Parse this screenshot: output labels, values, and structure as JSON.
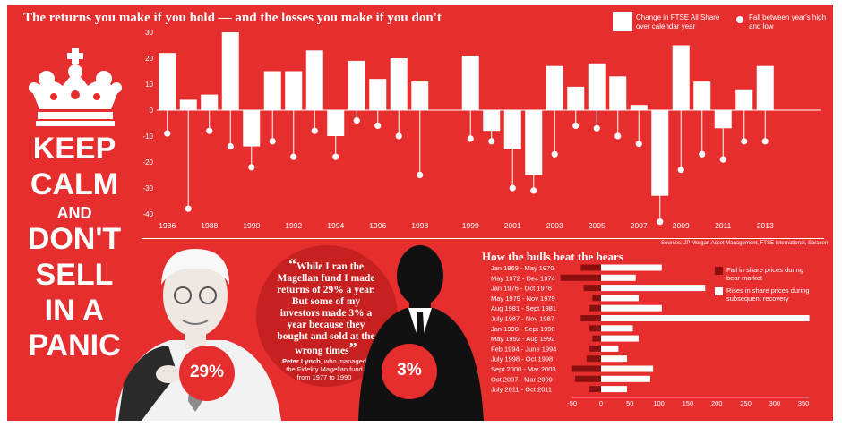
{
  "title": "The returns you make if you hold — and the losses you make if you don't",
  "legend": {
    "bar_label": "Change in FTSE All Share over calendar year",
    "dot_label": "Fall between year's high and low"
  },
  "poster": {
    "lines": [
      "KEEP",
      "CALM",
      "AND",
      "DON'T",
      "SELL",
      "IN A",
      "PANIC"
    ]
  },
  "sources": "Sources: JP Morgan Asset Management, FTSE International, Saracen",
  "quote": {
    "text": "While I ran the Magellan fund I made returns of 29% a year. But some of my investors made 3% a year because they bought and sold at the wrong times",
    "open_mark": "“",
    "close_mark": "”",
    "attribution_name": "Peter Lynch",
    "attribution_text": ", who managed the Fidelity Magellan fund from 1977 to 1990"
  },
  "badges": {
    "left": "29%",
    "right": "3%"
  },
  "colors": {
    "background": "#e62e2e",
    "bars": "#ffffff",
    "bear": "#8b0f0f",
    "badge": "#e62e2e"
  },
  "chart_data": [
    {
      "type": "bar",
      "title": "The returns you make if you hold — and the losses you make if you don't",
      "x": [
        1986,
        1987,
        1988,
        1989,
        1990,
        1991,
        1992,
        1993,
        1994,
        1995,
        1996,
        1997,
        1998,
        1999,
        2000,
        2001,
        2002,
        2003,
        2004,
        2005,
        2006,
        2007,
        2008,
        2009,
        2010,
        2011,
        2012,
        2013
      ],
      "x_tick_labels": [
        "1986",
        "1988",
        "1990",
        "1992",
        "1994",
        "1996",
        "1998",
        "1999",
        "2001",
        "2003",
        "2005",
        "2007",
        "2009",
        "2011",
        "2013"
      ],
      "ylim": [
        -40,
        30
      ],
      "y_ticks": [
        30,
        20,
        10,
        0,
        -10,
        -20,
        -30,
        -40
      ],
      "grid": false,
      "legend_position": "top-right",
      "series": [
        {
          "name": "Change in FTSE All Share over calendar year",
          "values": [
            22,
            4,
            6,
            30,
            -14,
            15,
            15,
            23,
            -10,
            19,
            12,
            20,
            11,
            21,
            -8,
            -15,
            -25,
            17,
            9,
            18,
            13,
            2,
            -33,
            25,
            11,
            -7,
            8,
            17
          ]
        },
        {
          "name": "Fall between year's high and low",
          "values": [
            -9,
            -38,
            -8,
            -14,
            -22,
            -12,
            -18,
            -8,
            -18,
            -4,
            -6,
            -10,
            -25,
            -11,
            -12,
            -30,
            -31,
            -17,
            -6,
            -7,
            -10,
            -13,
            -43,
            -23,
            -17,
            -19,
            -12,
            -12
          ]
        }
      ]
    },
    {
      "type": "bar",
      "title": "How the bulls beat the bears",
      "orientation": "horizontal",
      "categories": [
        "Jan 1969 - May 1970",
        "May 1972 - Dec 1974",
        "Jan 1976 - Oct 1976",
        "May 1979 - Nov 1979",
        "Aug 1981 - Sept 1981",
        "July 1987 - Nov 1987",
        "Jan 1990 - Sept 1990",
        "May 1992 - Aug 1992",
        "Feb 1994 - June 1994",
        "July 1998 - Oct 1998",
        "Sept 2000 - Mar 2003",
        "Oct 2007 - Mar 2009",
        "July 2011 - Oct 2011"
      ],
      "xlim": [
        -50,
        360
      ],
      "x_ticks": [
        -50,
        0,
        50,
        100,
        150,
        200,
        250,
        300,
        350
      ],
      "legend_position": "top-right",
      "series": [
        {
          "name": "Fall in share prices during bear market",
          "values": [
            -35,
            -70,
            -30,
            -15,
            -20,
            -35,
            -20,
            -15,
            -20,
            -25,
            -50,
            -45,
            -20
          ]
        },
        {
          "name": "Rises in share prices during subsequent recovery",
          "values": [
            105,
            60,
            180,
            65,
            105,
            360,
            55,
            65,
            30,
            45,
            90,
            85,
            45
          ]
        }
      ]
    }
  ]
}
